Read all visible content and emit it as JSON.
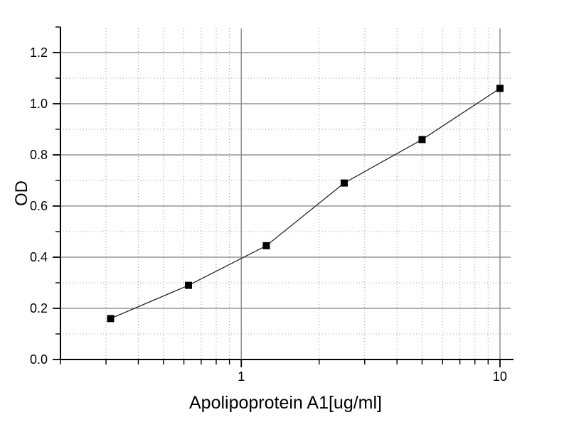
{
  "figure": {
    "background_color": "#ffffff",
    "title": ""
  },
  "chart_data": {
    "type": "line",
    "title": "",
    "xlabel": "Apolipoprotein A1[ug/ml]",
    "ylabel": "OD",
    "x_scale": "log10",
    "y_scale": "linear",
    "xlim": [
      0.2,
      11
    ],
    "ylim": [
      0.0,
      1.3
    ],
    "grid": {
      "major": "solid",
      "minor": "dotted",
      "legend": "none"
    },
    "marker": "filled-square",
    "marker_size_px": 10,
    "points": [
      {
        "x": 0.3125,
        "y": 0.16
      },
      {
        "x": 0.625,
        "y": 0.29
      },
      {
        "x": 1.25,
        "y": 0.445
      },
      {
        "x": 2.5,
        "y": 0.69
      },
      {
        "x": 5,
        "y": 0.86
      },
      {
        "x": 10,
        "y": 1.06
      }
    ],
    "x_major_ticks": [
      {
        "value": 1,
        "label": "1"
      },
      {
        "value": 10,
        "label": "10"
      }
    ],
    "x_minor_ticks": [
      0.2,
      0.3,
      0.4,
      0.5,
      0.6,
      0.7,
      0.8,
      0.9,
      2,
      3,
      4,
      5,
      6,
      7,
      8,
      9
    ],
    "y_major_ticks": [
      {
        "value": 0.0,
        "label": "0.0"
      },
      {
        "value": 0.2,
        "label": "0.2"
      },
      {
        "value": 0.4,
        "label": "0.4"
      },
      {
        "value": 0.6,
        "label": "0.6"
      },
      {
        "value": 0.8,
        "label": "0.8"
      },
      {
        "value": 1.0,
        "label": "1.0"
      },
      {
        "value": 1.2,
        "label": "1.2"
      }
    ],
    "y_minor_ticks": [
      0.1,
      0.3,
      0.5,
      0.7,
      0.9,
      1.1,
      1.3
    ],
    "colors": {
      "axis": "#000000",
      "major_grid": "#7f7f7f",
      "minor_grid": "#9e9e9e",
      "line": "#2a2a2a",
      "marker": "#000000",
      "tick_label": "#000000"
    }
  }
}
